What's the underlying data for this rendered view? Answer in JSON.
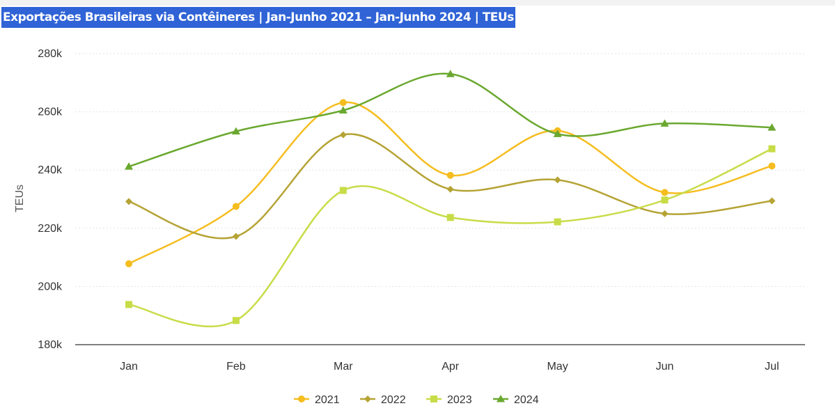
{
  "header": {
    "title": "Exportações Brasileiras via Contêineres | Jan-Junho 2021 – Jan-Junho 2024 | TEUs"
  },
  "chart_data": {
    "type": "line",
    "title": "Exportações Brasileiras via Contêineres | Jan-Junho 2021 – Jan-Junho 2024 | TEUs",
    "xlabel": "",
    "ylabel": "TEUs",
    "categories": [
      "Jan",
      "Feb",
      "Mar",
      "Apr",
      "May",
      "Jun",
      "Jul"
    ],
    "ylim": [
      180000,
      280000
    ],
    "yticks": [
      180000,
      200000,
      220000,
      240000,
      260000,
      280000
    ],
    "ytick_labels": [
      "180k",
      "200k",
      "220k",
      "240k",
      "260k",
      "280k"
    ],
    "grid": true,
    "legend_position": "bottom-center",
    "series": [
      {
        "name": "2021",
        "color": "#f5bd1f",
        "marker": "circle",
        "values": [
          207800,
          227500,
          263200,
          238200,
          253500,
          232300,
          241400
        ]
      },
      {
        "name": "2022",
        "color": "#b5a334",
        "marker": "diamond",
        "values": [
          229200,
          217200,
          252100,
          233400,
          236600,
          225000,
          229400
        ]
      },
      {
        "name": "2023",
        "color": "#c8dc47",
        "marker": "square",
        "values": [
          193800,
          188300,
          233000,
          223700,
          222200,
          229700,
          247300
        ]
      },
      {
        "name": "2024",
        "color": "#6aa82f",
        "marker": "triangle",
        "values": [
          241200,
          253300,
          260500,
          273000,
          252400,
          256000,
          254600
        ]
      }
    ]
  }
}
